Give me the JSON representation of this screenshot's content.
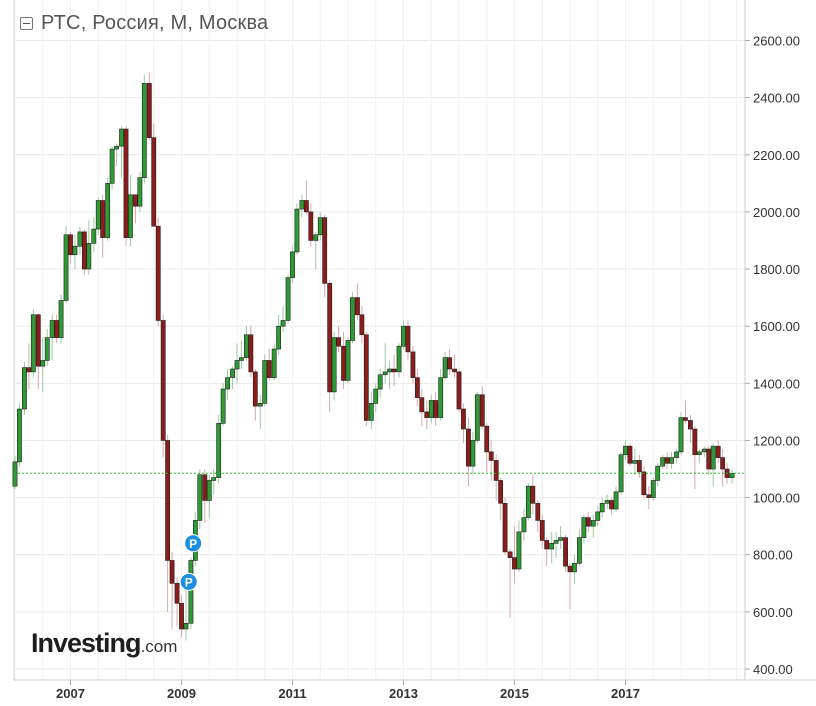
{
  "chart_title": "РТС, Россия, М, Москва",
  "logo": {
    "main": "Investing",
    "suffix": ".com"
  },
  "colors": {
    "up": "#2e9a34",
    "down": "#8b1d1d",
    "grid": "#e9e9e9",
    "current": "#22bb22",
    "marker": "#1a8fe0"
  },
  "chart_data": {
    "type": "candlestick",
    "interval": "monthly",
    "title": "РТС, Россия, М, Москва",
    "ylim": [
      360,
      2720
    ],
    "y_ticks": [
      "2600.00",
      "2400.00",
      "2200.00",
      "2000.00",
      "1800.00",
      "1600.00",
      "1400.00",
      "1200.00",
      "1000.00",
      "800.00",
      "600.00",
      "400.00"
    ],
    "y_tick_values": [
      2600,
      2400,
      2200,
      2000,
      1800,
      1600,
      1400,
      1200,
      1000,
      800,
      600,
      400
    ],
    "x_ticks": [
      {
        "label": "2007",
        "t": 2007.0
      },
      {
        "label": "2009",
        "t": 2009.0
      },
      {
        "label": "2011",
        "t": 2011.0
      },
      {
        "label": "2013",
        "t": 2013.0
      },
      {
        "label": "2015",
        "t": 2015.0
      },
      {
        "label": "2017",
        "t": 2017.0
      }
    ],
    "xlim": [
      2005.96,
      2019.35
    ],
    "grid": true,
    "current_value": 1085,
    "markers": [
      {
        "label": "P",
        "t": 2009.21,
        "price": 840
      },
      {
        "label": "P",
        "t": 2009.13,
        "price": 705
      }
    ],
    "candles": [
      [
        2006.0,
        1040,
        1145,
        1030,
        1125
      ],
      [
        2006.08,
        1125,
        1330,
        1110,
        1310
      ],
      [
        2006.17,
        1310,
        1475,
        1290,
        1455
      ],
      [
        2006.25,
        1455,
        1540,
        1380,
        1440
      ],
      [
        2006.33,
        1440,
        1660,
        1420,
        1640
      ],
      [
        2006.42,
        1640,
        1645,
        1380,
        1460
      ],
      [
        2006.5,
        1460,
        1560,
        1370,
        1480
      ],
      [
        2006.58,
        1480,
        1590,
        1460,
        1560
      ],
      [
        2006.67,
        1560,
        1640,
        1480,
        1620
      ],
      [
        2006.75,
        1620,
        1640,
        1540,
        1560
      ],
      [
        2006.83,
        1560,
        1710,
        1540,
        1690
      ],
      [
        2006.92,
        1690,
        1950,
        1680,
        1920
      ],
      [
        2007.0,
        1920,
        1930,
        1820,
        1850
      ],
      [
        2007.08,
        1850,
        1920,
        1800,
        1880
      ],
      [
        2007.17,
        1880,
        1950,
        1850,
        1930
      ],
      [
        2007.25,
        1930,
        1940,
        1780,
        1800
      ],
      [
        2007.33,
        1800,
        1970,
        1780,
        1890
      ],
      [
        2007.42,
        1890,
        1980,
        1860,
        1940
      ],
      [
        2007.5,
        1940,
        2050,
        1920,
        2040
      ],
      [
        2007.58,
        2040,
        2060,
        1840,
        1910
      ],
      [
        2007.67,
        1910,
        2120,
        1900,
        2100
      ],
      [
        2007.75,
        2100,
        2230,
        2080,
        2220
      ],
      [
        2007.83,
        2220,
        2240,
        2160,
        2230
      ],
      [
        2007.92,
        2230,
        2300,
        2120,
        2290
      ],
      [
        2008.0,
        2290,
        2300,
        1880,
        1910
      ],
      [
        2008.08,
        1910,
        2130,
        1880,
        2060
      ],
      [
        2008.17,
        2060,
        2060,
        1960,
        2020
      ],
      [
        2008.25,
        2020,
        2140,
        2000,
        2120
      ],
      [
        2008.33,
        2120,
        2480,
        2100,
        2450
      ],
      [
        2008.42,
        2450,
        2490,
        2250,
        2260
      ],
      [
        2008.5,
        2260,
        2310,
        1950,
        1950
      ],
      [
        2008.58,
        1950,
        1980,
        1600,
        1620
      ],
      [
        2008.67,
        1620,
        1640,
        1140,
        1200
      ],
      [
        2008.75,
        1200,
        1220,
        600,
        780
      ],
      [
        2008.83,
        780,
        810,
        540,
        700
      ],
      [
        2008.92,
        700,
        720,
        550,
        630
      ],
      [
        2009.0,
        630,
        660,
        510,
        540
      ],
      [
        2009.08,
        540,
        700,
        500,
        560
      ],
      [
        2009.17,
        560,
        790,
        540,
        780
      ],
      [
        2009.25,
        780,
        950,
        760,
        920
      ],
      [
        2009.33,
        920,
        1100,
        890,
        1080
      ],
      [
        2009.42,
        1080,
        1100,
        910,
        990
      ],
      [
        2009.5,
        990,
        1080,
        930,
        1060
      ],
      [
        2009.58,
        1060,
        1100,
        1010,
        1070
      ],
      [
        2009.67,
        1070,
        1290,
        1050,
        1260
      ],
      [
        2009.75,
        1260,
        1400,
        1250,
        1380
      ],
      [
        2009.83,
        1380,
        1450,
        1340,
        1420
      ],
      [
        2009.92,
        1420,
        1460,
        1380,
        1450
      ],
      [
        2010.0,
        1450,
        1540,
        1400,
        1480
      ],
      [
        2010.08,
        1480,
        1550,
        1450,
        1490
      ],
      [
        2010.17,
        1490,
        1600,
        1480,
        1570
      ],
      [
        2010.25,
        1570,
        1600,
        1420,
        1440
      ],
      [
        2010.33,
        1440,
        1450,
        1270,
        1320
      ],
      [
        2010.42,
        1320,
        1360,
        1240,
        1330
      ],
      [
        2010.5,
        1330,
        1500,
        1320,
        1480
      ],
      [
        2010.58,
        1480,
        1520,
        1410,
        1420
      ],
      [
        2010.67,
        1420,
        1540,
        1410,
        1520
      ],
      [
        2010.75,
        1520,
        1640,
        1500,
        1600
      ],
      [
        2010.83,
        1600,
        1670,
        1580,
        1620
      ],
      [
        2010.92,
        1620,
        1780,
        1610,
        1770
      ],
      [
        2011.0,
        1770,
        1880,
        1750,
        1860
      ],
      [
        2011.08,
        1860,
        2030,
        1850,
        2010
      ],
      [
        2011.17,
        2010,
        2060,
        1980,
        2040
      ],
      [
        2011.25,
        2040,
        2110,
        1990,
        2000
      ],
      [
        2011.33,
        2000,
        2030,
        1880,
        1900
      ],
      [
        2011.42,
        1900,
        1930,
        1800,
        1920
      ],
      [
        2011.5,
        1920,
        2000,
        1900,
        1980
      ],
      [
        2011.58,
        1980,
        1990,
        1700,
        1750
      ],
      [
        2011.67,
        1750,
        1760,
        1300,
        1370
      ],
      [
        2011.75,
        1370,
        1580,
        1340,
        1560
      ],
      [
        2011.83,
        1560,
        1600,
        1510,
        1530
      ],
      [
        2011.92,
        1530,
        1580,
        1380,
        1410
      ],
      [
        2012.0,
        1410,
        1560,
        1400,
        1550
      ],
      [
        2012.08,
        1550,
        1720,
        1540,
        1700
      ],
      [
        2012.17,
        1700,
        1750,
        1620,
        1640
      ],
      [
        2012.25,
        1640,
        1670,
        1540,
        1570
      ],
      [
        2012.33,
        1570,
        1580,
        1250,
        1270
      ],
      [
        2012.42,
        1270,
        1370,
        1240,
        1330
      ],
      [
        2012.5,
        1330,
        1400,
        1300,
        1380
      ],
      [
        2012.58,
        1380,
        1450,
        1350,
        1430
      ],
      [
        2012.67,
        1430,
        1540,
        1400,
        1440
      ],
      [
        2012.75,
        1440,
        1480,
        1380,
        1450
      ],
      [
        2012.83,
        1450,
        1500,
        1390,
        1440
      ],
      [
        2012.92,
        1440,
        1540,
        1420,
        1530
      ],
      [
        2013.0,
        1530,
        1620,
        1520,
        1600
      ],
      [
        2013.08,
        1600,
        1620,
        1480,
        1510
      ],
      [
        2013.17,
        1510,
        1530,
        1400,
        1420
      ],
      [
        2013.25,
        1420,
        1450,
        1320,
        1350
      ],
      [
        2013.33,
        1350,
        1380,
        1250,
        1300
      ],
      [
        2013.42,
        1300,
        1340,
        1240,
        1280
      ],
      [
        2013.5,
        1280,
        1360,
        1260,
        1340
      ],
      [
        2013.58,
        1340,
        1370,
        1250,
        1280
      ],
      [
        2013.67,
        1280,
        1450,
        1270,
        1420
      ],
      [
        2013.75,
        1420,
        1510,
        1410,
        1490
      ],
      [
        2013.83,
        1490,
        1520,
        1430,
        1450
      ],
      [
        2013.92,
        1450,
        1500,
        1420,
        1440
      ],
      [
        2014.0,
        1440,
        1450,
        1300,
        1310
      ],
      [
        2014.08,
        1310,
        1330,
        1190,
        1240
      ],
      [
        2014.17,
        1240,
        1280,
        1040,
        1110
      ],
      [
        2014.25,
        1110,
        1230,
        1080,
        1200
      ],
      [
        2014.33,
        1200,
        1370,
        1190,
        1360
      ],
      [
        2014.42,
        1360,
        1390,
        1240,
        1250
      ],
      [
        2014.5,
        1250,
        1260,
        1090,
        1160
      ],
      [
        2014.58,
        1160,
        1200,
        1060,
        1130
      ],
      [
        2014.67,
        1130,
        1150,
        990,
        1060
      ],
      [
        2014.75,
        1060,
        1070,
        920,
        980
      ],
      [
        2014.83,
        980,
        1000,
        800,
        810
      ],
      [
        2014.92,
        810,
        820,
        580,
        790
      ],
      [
        2015.0,
        790,
        900,
        700,
        750
      ],
      [
        2015.08,
        750,
        920,
        740,
        880
      ],
      [
        2015.17,
        880,
        960,
        850,
        930
      ],
      [
        2015.25,
        930,
        1050,
        920,
        1040
      ],
      [
        2015.33,
        1040,
        1080,
        940,
        980
      ],
      [
        2015.42,
        980,
        990,
        880,
        920
      ],
      [
        2015.5,
        920,
        940,
        820,
        850
      ],
      [
        2015.58,
        850,
        860,
        760,
        820
      ],
      [
        2015.67,
        820,
        880,
        770,
        840
      ],
      [
        2015.75,
        840,
        880,
        790,
        850
      ],
      [
        2015.83,
        850,
        900,
        820,
        860
      ],
      [
        2015.92,
        860,
        870,
        740,
        760
      ],
      [
        2016.0,
        760,
        770,
        610,
        740
      ],
      [
        2016.08,
        740,
        800,
        700,
        770
      ],
      [
        2016.17,
        770,
        890,
        760,
        860
      ],
      [
        2016.25,
        860,
        940,
        840,
        930
      ],
      [
        2016.33,
        930,
        950,
        880,
        900
      ],
      [
        2016.42,
        900,
        940,
        860,
        920
      ],
      [
        2016.5,
        920,
        970,
        900,
        950
      ],
      [
        2016.58,
        950,
        1000,
        930,
        980
      ],
      [
        2016.67,
        980,
        1010,
        960,
        990
      ],
      [
        2016.75,
        990,
        1000,
        940,
        960
      ],
      [
        2016.83,
        960,
        1040,
        950,
        1020
      ],
      [
        2016.92,
        1020,
        1160,
        1010,
        1150
      ],
      [
        2017.0,
        1150,
        1200,
        1130,
        1180
      ],
      [
        2017.08,
        1180,
        1190,
        1110,
        1120
      ],
      [
        2017.17,
        1120,
        1170,
        1080,
        1130
      ],
      [
        2017.25,
        1130,
        1150,
        1070,
        1090
      ],
      [
        2017.33,
        1090,
        1110,
        1000,
        1010
      ],
      [
        2017.42,
        1010,
        1040,
        960,
        1000
      ],
      [
        2017.5,
        1000,
        1070,
        990,
        1060
      ],
      [
        2017.58,
        1060,
        1120,
        1040,
        1110
      ],
      [
        2017.67,
        1110,
        1150,
        1100,
        1140
      ],
      [
        2017.75,
        1140,
        1160,
        1100,
        1120
      ],
      [
        2017.83,
        1120,
        1160,
        1100,
        1140
      ],
      [
        2017.92,
        1140,
        1170,
        1120,
        1160
      ],
      [
        2018.0,
        1160,
        1300,
        1150,
        1280
      ],
      [
        2018.08,
        1280,
        1340,
        1260,
        1270
      ],
      [
        2018.17,
        1270,
        1290,
        1190,
        1240
      ],
      [
        2018.25,
        1240,
        1250,
        1030,
        1150
      ],
      [
        2018.33,
        1150,
        1170,
        1120,
        1160
      ],
      [
        2018.42,
        1160,
        1180,
        1140,
        1170
      ],
      [
        2018.5,
        1170,
        1180,
        1080,
        1100
      ],
      [
        2018.58,
        1100,
        1190,
        1040,
        1180
      ],
      [
        2018.67,
        1180,
        1200,
        1120,
        1140
      ],
      [
        2018.75,
        1140,
        1170,
        1040,
        1100
      ],
      [
        2018.83,
        1100,
        1120,
        1050,
        1070
      ],
      [
        2018.92,
        1070,
        1100,
        1050,
        1085
      ]
    ]
  }
}
